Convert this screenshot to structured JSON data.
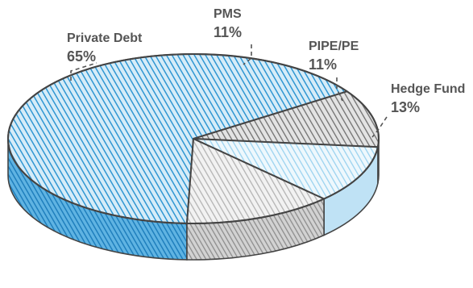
{
  "chart_data": {
    "type": "pie",
    "style": "3d-sketch",
    "slices": [
      {
        "label": "Private Debt",
        "value_label": "65%",
        "value": 65,
        "color": "#3aa4dc"
      },
      {
        "label": "PMS",
        "value_label": "11%",
        "value": 11,
        "color": "#8a8a8a"
      },
      {
        "label": "PIPE/PE",
        "value_label": "11%",
        "value": 11,
        "color": "#a9d9f2"
      },
      {
        "label": "Hedge Fund",
        "value_label": "13%",
        "value": 13,
        "color": "#c2c2c2"
      }
    ],
    "legend": "none"
  }
}
